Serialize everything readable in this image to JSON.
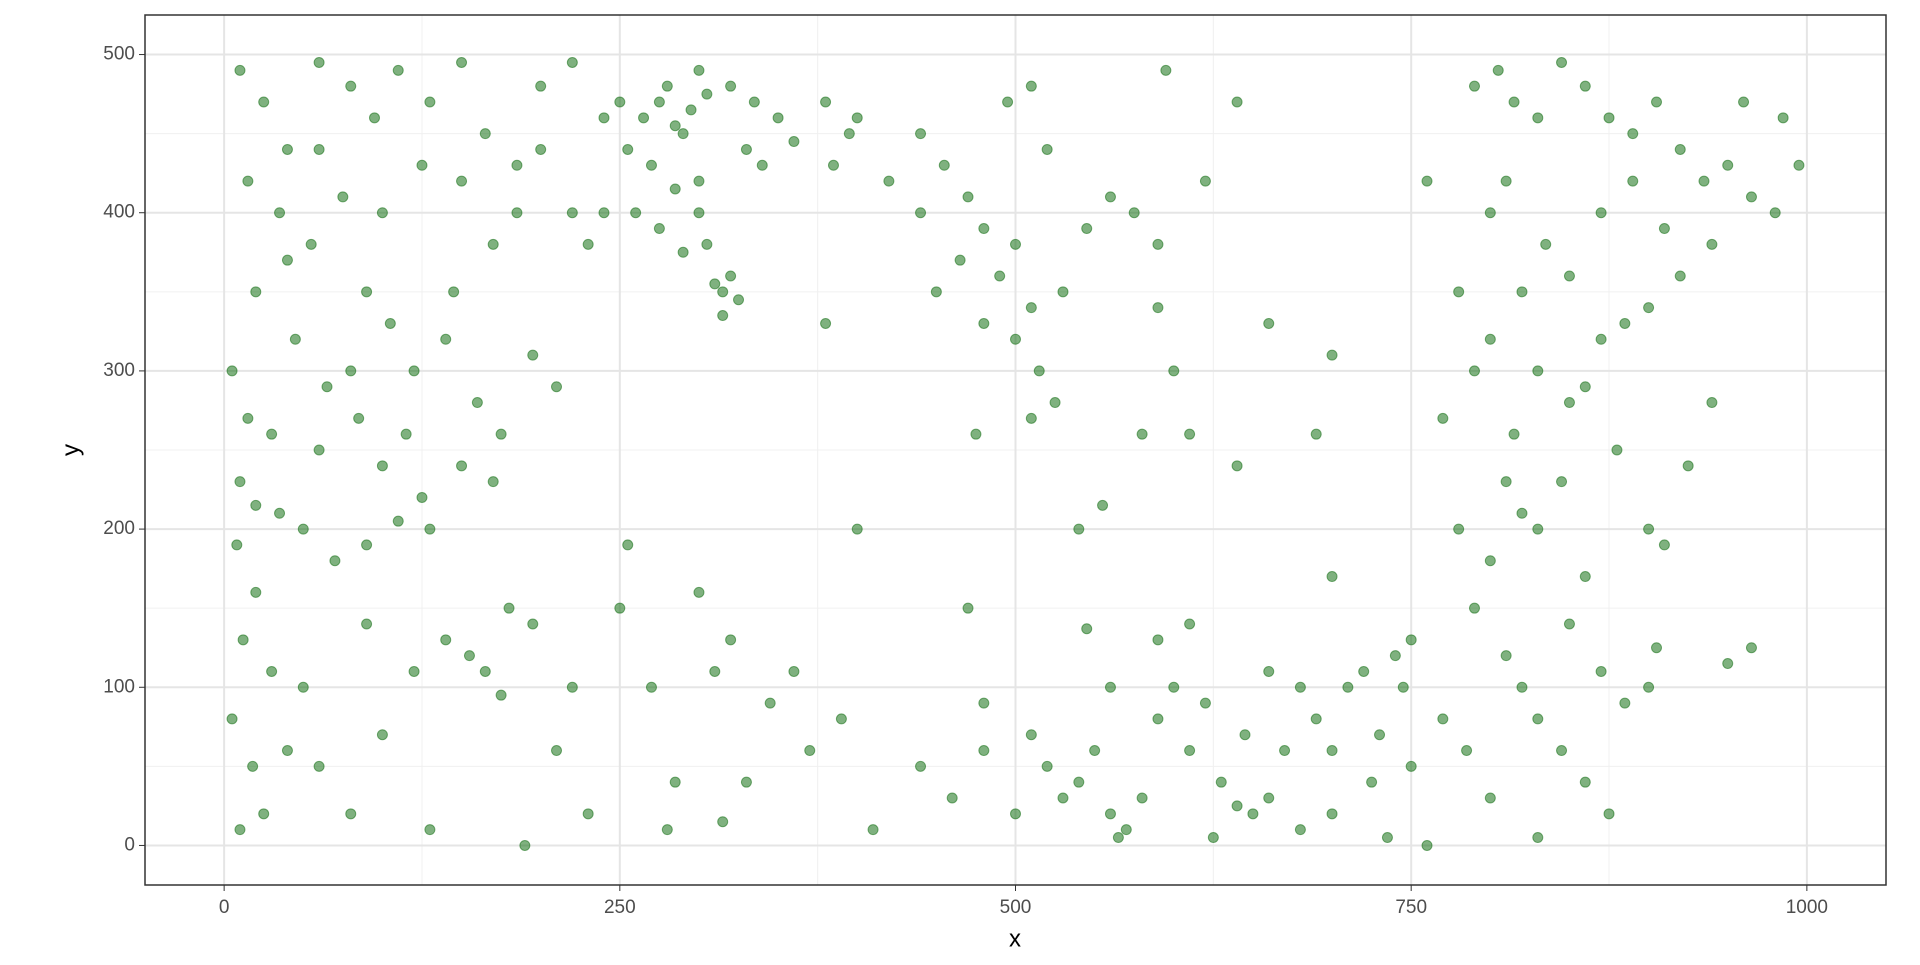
{
  "chart_data": {
    "type": "scatter",
    "x_label": "x",
    "y_label": "y",
    "color": "#006400",
    "opacity": 0.5,
    "grid": true,
    "xlim": [
      -50,
      1050
    ],
    "ylim": [
      -25,
      525
    ],
    "xticks": [
      0,
      250,
      500,
      750,
      1000
    ],
    "yticks": [
      0,
      100,
      200,
      300,
      400,
      500
    ],
    "xminor": [
      125,
      375,
      625,
      875
    ],
    "yminor": [
      50,
      150,
      250,
      350,
      450
    ],
    "x": [
      10,
      25,
      40,
      60,
      80,
      95,
      110,
      130,
      150,
      165,
      185,
      200,
      220,
      15,
      35,
      55,
      75,
      90,
      105,
      120,
      140,
      160,
      175,
      195,
      210,
      20,
      45,
      65,
      85,
      100,
      125,
      150,
      170,
      30,
      10,
      20,
      35,
      50,
      70,
      90,
      110,
      130,
      60,
      80,
      115,
      145,
      170,
      185,
      200,
      220,
      240,
      230,
      150,
      125,
      100,
      60,
      40,
      5,
      15,
      8,
      20,
      12,
      30,
      5,
      18,
      25,
      40,
      10,
      265,
      275,
      285,
      295,
      305,
      290,
      280,
      300,
      320,
      335,
      255,
      270,
      285,
      300,
      260,
      275,
      290,
      305,
      310,
      315,
      320,
      325,
      300,
      340,
      350,
      360,
      380,
      395,
      240,
      250,
      330,
      315,
      60,
      80,
      100,
      120,
      140,
      155,
      165,
      175,
      180,
      195,
      210,
      230,
      250,
      270,
      285,
      300,
      310,
      320,
      330,
      345,
      360,
      370,
      255,
      220,
      130,
      190,
      280,
      315,
      390,
      410,
      400,
      90,
      50,
      440,
      455,
      470,
      480,
      495,
      510,
      520,
      500,
      490,
      510,
      500,
      515,
      530,
      545,
      560,
      575,
      590,
      440,
      450,
      465,
      480,
      525,
      510,
      475,
      540,
      555,
      590,
      600,
      620,
      640,
      595,
      610,
      640,
      385,
      400,
      420,
      380,
      580,
      660,
      700,
      690,
      440,
      460,
      480,
      500,
      510,
      520,
      530,
      540,
      550,
      560,
      570,
      580,
      590,
      600,
      610,
      620,
      630,
      640,
      650,
      660,
      645,
      670,
      680,
      690,
      700,
      710,
      720,
      730,
      740,
      750,
      745,
      725,
      700,
      680,
      625,
      565,
      610,
      590,
      560,
      545,
      470,
      480,
      660,
      700,
      750,
      760,
      770,
      735,
      790,
      805,
      815,
      830,
      845,
      860,
      875,
      890,
      905,
      920,
      935,
      950,
      965,
      980,
      995,
      985,
      960,
      940,
      920,
      900,
      885,
      870,
      860,
      850,
      830,
      815,
      810,
      820,
      830,
      845,
      860,
      880,
      900,
      910,
      925,
      940,
      800,
      810,
      820,
      835,
      850,
      870,
      890,
      910,
      780,
      770,
      790,
      800,
      790,
      810,
      820,
      830,
      845,
      860,
      875,
      830,
      800,
      785,
      850,
      870,
      885,
      900,
      905,
      950,
      965,
      780,
      760,
      800
    ],
    "y": [
      490,
      470,
      440,
      495,
      480,
      460,
      490,
      470,
      495,
      450,
      430,
      480,
      495,
      420,
      400,
      380,
      410,
      350,
      330,
      300,
      320,
      280,
      260,
      310,
      290,
      350,
      320,
      290,
      270,
      240,
      220,
      240,
      230,
      260,
      230,
      215,
      210,
      200,
      180,
      190,
      205,
      200,
      250,
      300,
      260,
      350,
      380,
      400,
      440,
      400,
      460,
      380,
      420,
      430,
      400,
      440,
      370,
      300,
      270,
      190,
      160,
      130,
      110,
      80,
      50,
      20,
      60,
      10,
      460,
      470,
      455,
      465,
      475,
      450,
      480,
      490,
      480,
      470,
      440,
      430,
      415,
      420,
      400,
      390,
      375,
      380,
      355,
      350,
      360,
      345,
      400,
      430,
      460,
      445,
      470,
      450,
      400,
      470,
      440,
      335,
      50,
      20,
      70,
      110,
      130,
      120,
      110,
      95,
      150,
      140,
      60,
      20,
      150,
      100,
      40,
      160,
      110,
      130,
      40,
      90,
      110,
      60,
      190,
      100,
      10,
      0,
      10,
      15,
      80,
      10,
      200,
      140,
      100,
      450,
      430,
      410,
      390,
      470,
      480,
      440,
      380,
      360,
      340,
      320,
      300,
      350,
      390,
      410,
      400,
      380,
      400,
      350,
      370,
      330,
      280,
      270,
      260,
      200,
      215,
      340,
      300,
      420,
      470,
      490,
      260,
      240,
      430,
      460,
      420,
      330,
      260,
      330,
      310,
      260,
      50,
      30,
      60,
      20,
      70,
      50,
      30,
      40,
      60,
      20,
      10,
      30,
      80,
      100,
      60,
      90,
      40,
      25,
      20,
      30,
      70,
      60,
      100,
      80,
      60,
      100,
      110,
      70,
      120,
      130,
      100,
      40,
      20,
      10,
      5,
      5,
      140,
      130,
      100,
      137,
      150,
      90,
      110,
      170,
      50,
      0,
      80,
      5,
      480,
      490,
      470,
      460,
      495,
      480,
      460,
      450,
      470,
      440,
      420,
      430,
      410,
      400,
      430,
      460,
      470,
      380,
      360,
      340,
      330,
      320,
      290,
      280,
      300,
      260,
      230,
      210,
      200,
      230,
      170,
      250,
      200,
      190,
      240,
      280,
      400,
      420,
      350,
      380,
      360,
      400,
      420,
      390,
      350,
      270,
      300,
      180,
      150,
      120,
      100,
      80,
      60,
      40,
      20,
      5,
      30,
      60,
      140,
      110,
      90,
      100,
      125,
      115,
      125,
      200,
      420,
      320
    ]
  }
}
